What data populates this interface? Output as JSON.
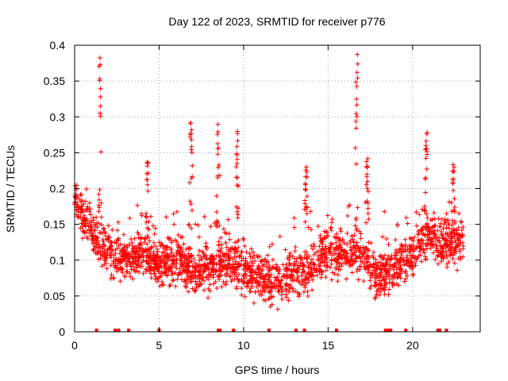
{
  "chart_data": {
    "type": "scatter",
    "title": "Day 122 of 2023, SRMTID for receiver p776",
    "xlabel": "GPS time / hours",
    "ylabel": "SRMTID / TECUs",
    "xlim": [
      0,
      24
    ],
    "ylim": [
      0,
      0.4
    ],
    "x_ticks": [
      0,
      5,
      10,
      15,
      20
    ],
    "x_tick_labels": [
      "0",
      "5",
      "10",
      "15",
      "20"
    ],
    "y_ticks": [
      0,
      0.05,
      0.1,
      0.15,
      0.2,
      0.25,
      0.3,
      0.35,
      0.4
    ],
    "y_tick_labels": [
      "0",
      "0.05",
      "0.1",
      "0.15",
      "0.2",
      "0.25",
      "0.3",
      "0.35",
      "0.4"
    ],
    "grid": true,
    "marker": "plus",
    "series": [
      {
        "name": "SRMTID",
        "color": "#ff0000",
        "spikes": [
          {
            "x": 1.5,
            "peak": 0.385,
            "base": 0.3
          },
          {
            "x": 6.9,
            "peak": 0.295,
            "base": 0.25
          },
          {
            "x": 8.5,
            "peak": 0.29,
            "base": 0.22
          },
          {
            "x": 9.6,
            "peak": 0.28,
            "base": 0.22
          },
          {
            "x": 16.7,
            "peak": 0.385,
            "base": 0.3
          },
          {
            "x": 20.8,
            "peak": 0.275,
            "base": 0.24
          },
          {
            "x": 22.4,
            "peak": 0.235,
            "base": 0.2
          },
          {
            "x": 4.3,
            "peak": 0.24,
            "base": 0.2
          },
          {
            "x": 13.7,
            "peak": 0.23,
            "base": 0.19
          },
          {
            "x": 17.3,
            "peak": 0.245,
            "base": 0.2
          }
        ],
        "zero_markers": [
          1.3,
          2.4,
          2.6,
          3.2,
          5.0,
          8.5,
          8.6,
          9.4,
          11.5,
          13.1,
          13.6,
          15.5,
          18.4,
          18.6,
          18.7,
          19.6,
          21.5,
          21.6,
          22.0
        ],
        "trend": [
          {
            "x": 0.0,
            "y": 0.19
          },
          {
            "x": 0.5,
            "y": 0.16
          },
          {
            "x": 1.0,
            "y": 0.14
          },
          {
            "x": 1.5,
            "y": 0.12
          },
          {
            "x": 2.0,
            "y": 0.11
          },
          {
            "x": 3.0,
            "y": 0.1
          },
          {
            "x": 4.0,
            "y": 0.11
          },
          {
            "x": 5.0,
            "y": 0.095
          },
          {
            "x": 6.0,
            "y": 0.1
          },
          {
            "x": 7.0,
            "y": 0.085
          },
          {
            "x": 8.0,
            "y": 0.09
          },
          {
            "x": 9.0,
            "y": 0.1
          },
          {
            "x": 10.0,
            "y": 0.085
          },
          {
            "x": 11.0,
            "y": 0.075
          },
          {
            "x": 12.0,
            "y": 0.07
          },
          {
            "x": 13.0,
            "y": 0.08
          },
          {
            "x": 14.0,
            "y": 0.09
          },
          {
            "x": 15.0,
            "y": 0.11
          },
          {
            "x": 16.0,
            "y": 0.115
          },
          {
            "x": 17.0,
            "y": 0.105
          },
          {
            "x": 18.0,
            "y": 0.075
          },
          {
            "x": 19.0,
            "y": 0.09
          },
          {
            "x": 20.0,
            "y": 0.11
          },
          {
            "x": 21.0,
            "y": 0.135
          },
          {
            "x": 22.0,
            "y": 0.12
          },
          {
            "x": 23.0,
            "y": 0.12
          }
        ]
      }
    ]
  }
}
